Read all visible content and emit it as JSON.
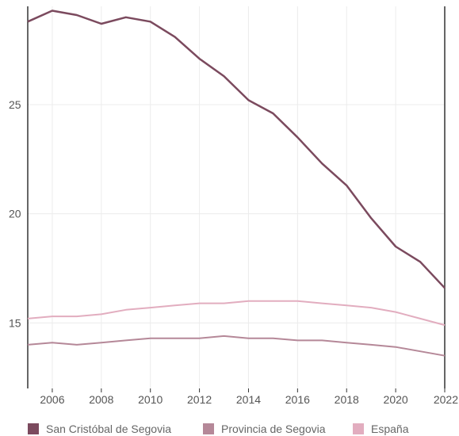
{
  "chart_data": {
    "type": "line",
    "title": "",
    "xlabel": "",
    "ylabel": "",
    "x": [
      2005,
      2006,
      2007,
      2008,
      2009,
      2010,
      2011,
      2012,
      2013,
      2014,
      2015,
      2016,
      2017,
      2018,
      2019,
      2020,
      2021,
      2022
    ],
    "x_ticks": [
      2006,
      2008,
      2010,
      2012,
      2014,
      2016,
      2018,
      2020,
      2022
    ],
    "y_ticks": [
      15,
      20,
      25
    ],
    "xlim": [
      2005,
      2022
    ],
    "ylim": [
      12.0,
      29.5
    ],
    "grid": true,
    "legend_position": "bottom-left",
    "series": [
      {
        "name": "San Cristóbal de Segovia",
        "color": "#7b4a5e",
        "values": [
          28.8,
          29.3,
          29.1,
          28.7,
          29.0,
          28.8,
          28.1,
          27.1,
          26.3,
          25.2,
          24.6,
          23.5,
          22.3,
          21.3,
          19.8,
          18.5,
          17.8,
          16.6
        ]
      },
      {
        "name": "Provincia de Segovia",
        "color": "#b58898",
        "values": [
          14.0,
          14.1,
          14.0,
          14.1,
          14.2,
          14.3,
          14.3,
          14.3,
          14.4,
          14.3,
          14.3,
          14.2,
          14.2,
          14.1,
          14.0,
          13.9,
          13.7,
          13.5
        ]
      },
      {
        "name": "España",
        "color": "#e2adbf",
        "values": [
          15.2,
          15.3,
          15.3,
          15.4,
          15.6,
          15.7,
          15.8,
          15.9,
          15.9,
          16.0,
          16.0,
          16.0,
          15.9,
          15.8,
          15.7,
          15.5,
          15.2,
          14.9
        ]
      }
    ]
  }
}
